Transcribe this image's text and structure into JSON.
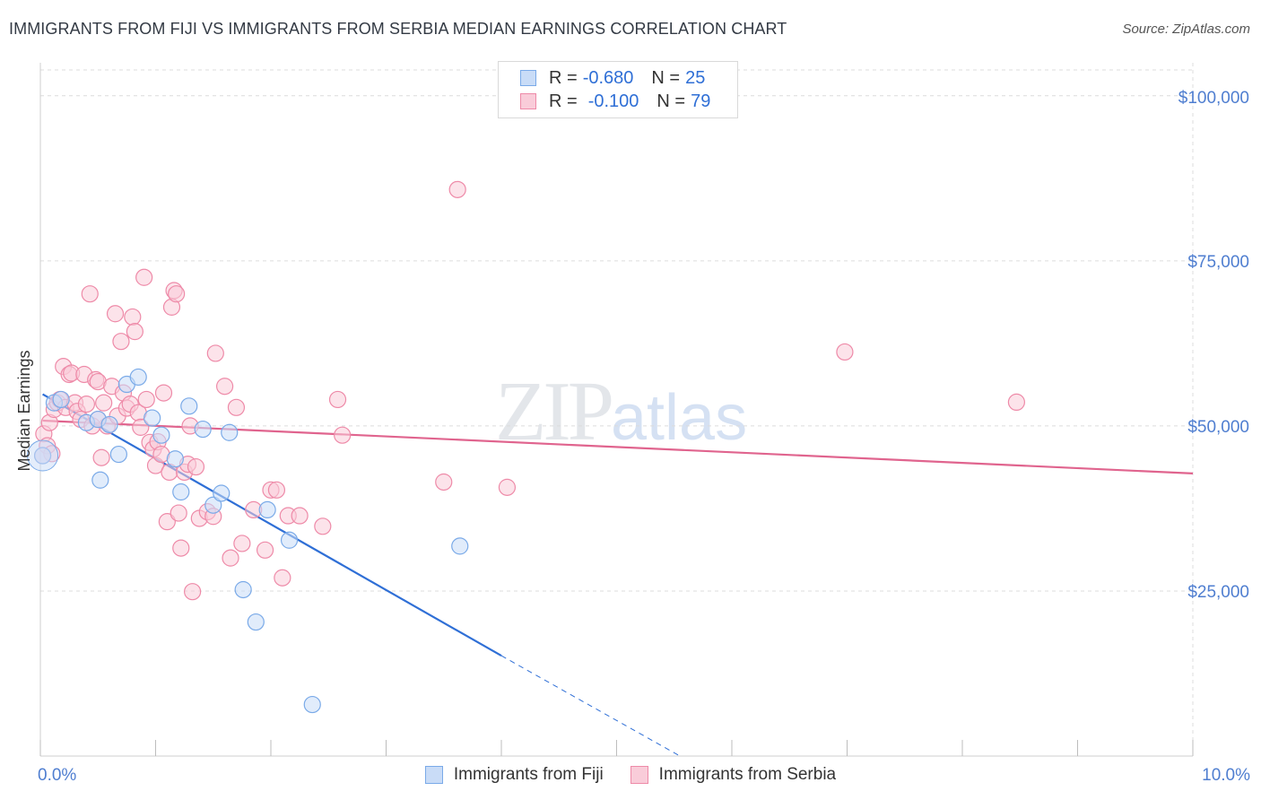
{
  "title": "IMMIGRANTS FROM FIJI VS IMMIGRANTS FROM SERBIA MEDIAN EARNINGS CORRELATION CHART",
  "source": "Source: ZipAtlas.com",
  "watermark": {
    "zip": "ZIP",
    "atlas": "atlas"
  },
  "legend": {
    "fiji": {
      "r_label": "R =",
      "r_value": "-0.680",
      "n_label": "N =",
      "n_value": "25",
      "color": "#7aaae8",
      "fill": "#c9dcf7"
    },
    "serbia": {
      "r_label": "R =",
      "r_value": "-0.100",
      "n_label": "N =",
      "n_value": "79",
      "color": "#ee8aa8",
      "fill": "#f9ccd9"
    }
  },
  "bottom_legend": {
    "fiji": "Immigrants from Fiji",
    "serbia": "Immigrants from Serbia"
  },
  "chart_data": {
    "type": "scatter",
    "title": "IMMIGRANTS FROM FIJI VS IMMIGRANTS FROM SERBIA MEDIAN EARNINGS CORRELATION CHART",
    "xlabel": "",
    "ylabel": "Median Earnings",
    "xlim": [
      0,
      10
    ],
    "ylim": [
      0,
      105000
    ],
    "x_tick_labels": [
      {
        "value": 0,
        "label": "0.0%"
      },
      {
        "value": 10,
        "label": "10.0%"
      }
    ],
    "y_ticks": [
      {
        "value": 25000,
        "label": "$25,000"
      },
      {
        "value": 50000,
        "label": "$50,000"
      },
      {
        "value": 75000,
        "label": "$75,000"
      },
      {
        "value": 100000,
        "label": "$100,000"
      }
    ],
    "grid": true,
    "series": [
      {
        "name": "Immigrants from Fiji",
        "color": "#7aaae8",
        "line_color": "#2f6fd6",
        "trend": {
          "x0": 0.02,
          "y0": 54800,
          "x1": 4.0,
          "y1": 15200,
          "dash_to_x": 5.55,
          "dash_to_y": 0
        },
        "points": [
          [
            0.02,
            45500
          ],
          [
            0.12,
            53500
          ],
          [
            0.18,
            54000
          ],
          [
            0.4,
            50500
          ],
          [
            0.5,
            51000
          ],
          [
            0.52,
            41800
          ],
          [
            0.6,
            50200
          ],
          [
            0.68,
            45700
          ],
          [
            0.75,
            56300
          ],
          [
            0.85,
            57400
          ],
          [
            0.97,
            51200
          ],
          [
            1.05,
            48600
          ],
          [
            1.17,
            45000
          ],
          [
            1.22,
            40000
          ],
          [
            1.29,
            53000
          ],
          [
            1.41,
            49500
          ],
          [
            1.5,
            38000
          ],
          [
            1.57,
            39800
          ],
          [
            1.64,
            49000
          ],
          [
            1.76,
            25200
          ],
          [
            1.87,
            20300
          ],
          [
            1.97,
            37300
          ],
          [
            2.16,
            32700
          ],
          [
            2.36,
            7800
          ],
          [
            3.64,
            31800
          ]
        ]
      },
      {
        "name": "Immigrants from Serbia",
        "color": "#ee8aa8",
        "line_color": "#e0648e",
        "trend": {
          "x0": 0.02,
          "y0": 50800,
          "x1": 10.0,
          "y1": 42800
        },
        "points": [
          [
            0.03,
            48800
          ],
          [
            0.06,
            47000
          ],
          [
            0.08,
            50500
          ],
          [
            0.12,
            52500
          ],
          [
            0.15,
            53500
          ],
          [
            0.17,
            54000
          ],
          [
            0.2,
            59000
          ],
          [
            0.22,
            52800
          ],
          [
            0.25,
            57800
          ],
          [
            0.27,
            58000
          ],
          [
            0.3,
            53500
          ],
          [
            0.32,
            52200
          ],
          [
            0.35,
            51000
          ],
          [
            0.38,
            57800
          ],
          [
            0.4,
            53300
          ],
          [
            0.43,
            70000
          ],
          [
            0.45,
            50000
          ],
          [
            0.48,
            57000
          ],
          [
            0.5,
            56700
          ],
          [
            0.53,
            45200
          ],
          [
            0.55,
            53500
          ],
          [
            0.58,
            50000
          ],
          [
            0.62,
            56000
          ],
          [
            0.65,
            67000
          ],
          [
            0.67,
            51500
          ],
          [
            0.7,
            62800
          ],
          [
            0.72,
            55000
          ],
          [
            0.75,
            52700
          ],
          [
            0.78,
            53300
          ],
          [
            0.8,
            66500
          ],
          [
            0.82,
            64300
          ],
          [
            0.85,
            52000
          ],
          [
            0.87,
            49800
          ],
          [
            0.9,
            72500
          ],
          [
            0.92,
            54000
          ],
          [
            0.95,
            47500
          ],
          [
            0.98,
            46500
          ],
          [
            1.0,
            44000
          ],
          [
            1.02,
            47600
          ],
          [
            1.05,
            45700
          ],
          [
            1.07,
            55000
          ],
          [
            1.1,
            35500
          ],
          [
            1.12,
            43000
          ],
          [
            1.14,
            68000
          ],
          [
            1.16,
            70500
          ],
          [
            1.18,
            70000
          ],
          [
            1.2,
            36800
          ],
          [
            1.22,
            31500
          ],
          [
            1.25,
            43000
          ],
          [
            1.28,
            44200
          ],
          [
            1.3,
            50000
          ],
          [
            1.32,
            24900
          ],
          [
            1.35,
            43800
          ],
          [
            1.38,
            36000
          ],
          [
            1.45,
            37000
          ],
          [
            1.5,
            36300
          ],
          [
            1.52,
            61000
          ],
          [
            1.6,
            56000
          ],
          [
            1.65,
            30000
          ],
          [
            1.7,
            52800
          ],
          [
            1.75,
            32200
          ],
          [
            1.85,
            37300
          ],
          [
            1.95,
            31200
          ],
          [
            2.0,
            40300
          ],
          [
            2.05,
            40300
          ],
          [
            2.1,
            27000
          ],
          [
            2.15,
            36400
          ],
          [
            2.25,
            36400
          ],
          [
            2.45,
            34800
          ],
          [
            2.58,
            54000
          ],
          [
            2.62,
            48600
          ],
          [
            3.5,
            41500
          ],
          [
            3.62,
            85800
          ],
          [
            4.05,
            40700
          ],
          [
            6.98,
            61200
          ],
          [
            8.47,
            53600
          ],
          [
            0.1,
            45800
          ],
          [
            0.5,
            51000
          ],
          [
            0.02,
            45500
          ]
        ]
      }
    ]
  }
}
